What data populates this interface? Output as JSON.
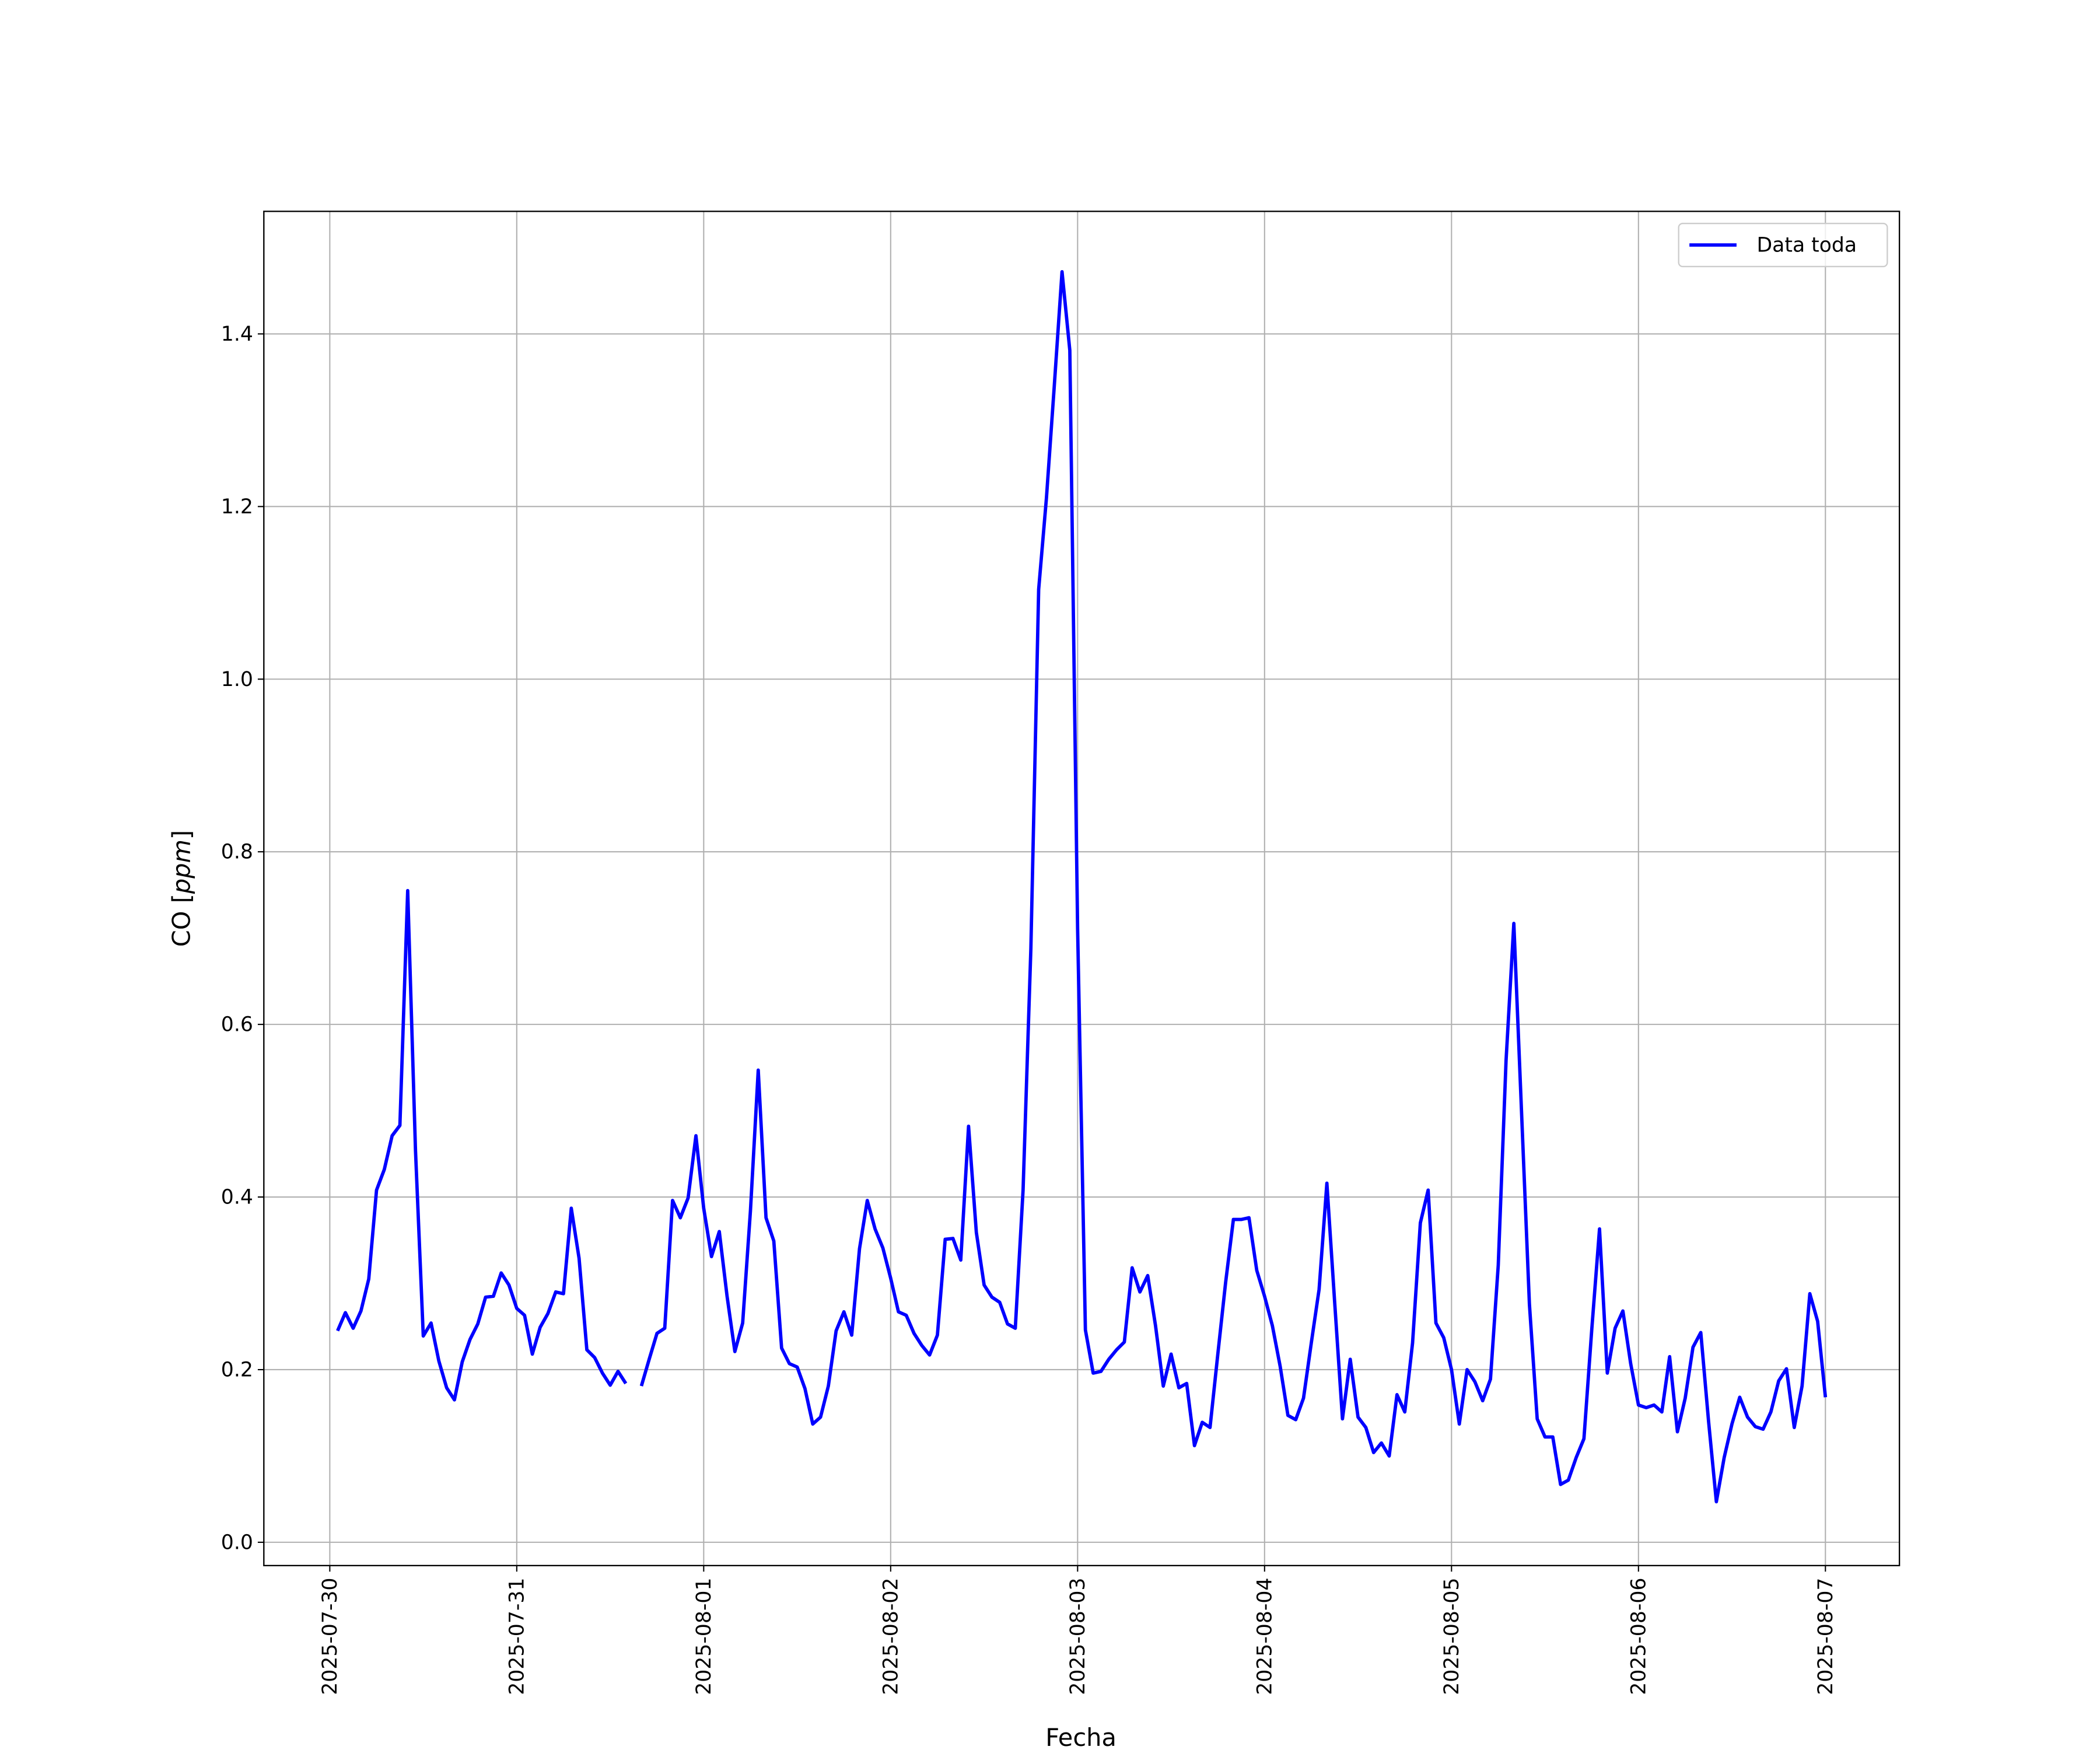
{
  "chart_data": {
    "type": "line",
    "title": "",
    "xlabel": "Fecha",
    "ylabel": "CO [ppm]",
    "ylabel_parts": {
      "prefix": "CO [",
      "italic": "ppm",
      "suffix": "]"
    },
    "xlim": [
      "2025-07-29 15:32",
      "2025-08-07 09:30"
    ],
    "ylim": [
      -0.027,
      1.542
    ],
    "grid": true,
    "legend_position": "top-right",
    "x_ticks": [
      "2025-07-30",
      "2025-07-31",
      "2025-08-01",
      "2025-08-02",
      "2025-08-03",
      "2025-08-04",
      "2025-08-05",
      "2025-08-06",
      "2025-08-07"
    ],
    "y_ticks": [
      0.0,
      0.2,
      0.4,
      0.6,
      0.8,
      1.0,
      1.2,
      1.4
    ],
    "y_tick_labels": [
      "0.0",
      "0.2",
      "0.4",
      "0.6",
      "0.8",
      "1.0",
      "1.2",
      "1.4"
    ],
    "x_start": "2025-07-30 01:00",
    "x_step": "1 hour",
    "series": [
      {
        "name": "Data toda",
        "color": "#0000ff",
        "values": [
          0.245,
          0.266,
          0.248,
          0.268,
          0.305,
          0.408,
          0.432,
          0.471,
          0.483,
          0.755,
          0.454,
          0.239,
          0.254,
          0.21,
          0.179,
          0.165,
          0.209,
          0.235,
          0.253,
          0.284,
          0.285,
          0.312,
          0.298,
          0.271,
          0.263,
          0.218,
          0.249,
          0.265,
          0.29,
          0.288,
          0.387,
          0.329,
          0.223,
          0.214,
          0.196,
          0.182,
          0.198,
          0.184,
          null,
          0.181,
          0.212,
          0.242,
          0.248,
          0.396,
          0.376,
          0.399,
          0.471,
          0.387,
          0.331,
          0.36,
          0.285,
          0.221,
          0.254,
          0.384,
          0.547,
          0.376,
          0.349,
          0.225,
          0.207,
          0.203,
          0.178,
          0.137,
          0.145,
          0.181,
          0.245,
          0.267,
          0.24,
          0.34,
          0.396,
          0.363,
          0.341,
          0.306,
          0.267,
          0.263,
          0.242,
          0.228,
          0.217,
          0.24,
          0.351,
          0.352,
          0.327,
          0.482,
          0.359,
          0.298,
          0.284,
          0.278,
          0.253,
          0.248,
          0.408,
          0.688,
          1.104,
          1.21,
          1.339,
          1.472,
          1.381,
          0.711,
          0.246,
          0.196,
          0.198,
          0.212,
          0.223,
          0.232,
          0.318,
          0.29,
          0.309,
          0.251,
          0.181,
          0.218,
          0.179,
          0.184,
          0.112,
          0.139,
          0.133,
          0.218,
          0.301,
          0.374,
          0.374,
          0.376,
          0.315,
          0.285,
          0.251,
          0.204,
          0.147,
          0.142,
          0.167,
          0.231,
          0.293,
          0.416,
          0.278,
          0.143,
          0.212,
          0.145,
          0.133,
          0.104,
          0.115,
          0.1,
          0.171,
          0.151,
          0.231,
          0.37,
          0.408,
          0.254,
          0.237,
          0.2,
          0.137,
          0.2,
          0.186,
          0.164,
          0.189,
          0.321,
          0.558,
          0.717,
          0.496,
          0.276,
          0.143,
          0.122,
          0.122,
          0.067,
          0.072,
          0.098,
          0.12,
          0.246,
          0.363,
          0.196,
          0.248,
          0.268,
          0.207,
          0.159,
          0.156,
          0.159,
          0.151,
          0.215,
          0.128,
          0.167,
          0.226,
          0.243,
          0.14,
          0.047,
          0.098,
          0.137,
          0.168,
          0.145,
          0.134,
          0.131,
          0.151,
          0.187,
          0.201,
          0.133,
          0.181,
          0.288,
          0.256,
          0.168
        ]
      }
    ]
  }
}
